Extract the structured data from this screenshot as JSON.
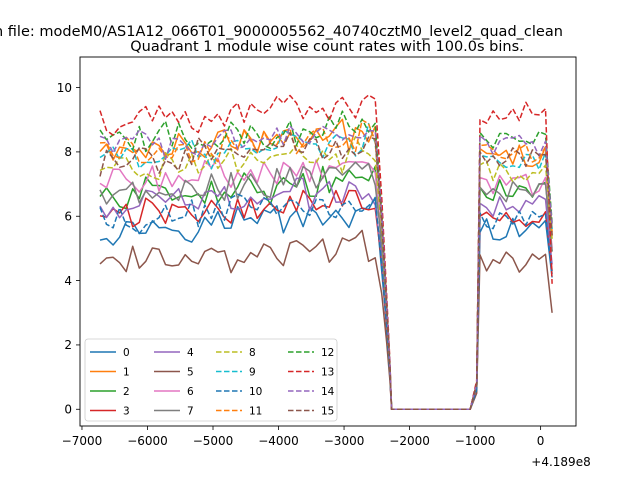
{
  "figure": {
    "suptitle": "n file: modeM0/AS1A12_066T01_9000005562_40740cztM0_level2_quad_clean"
  },
  "chart_data": {
    "type": "line",
    "title": "Quadrant 1 module wise count rates with 100.0s bins.",
    "xlabel": "",
    "ylabel": "",
    "x_offset_label": "+4.189e8",
    "xlim": [
      -7030,
      540
    ],
    "ylim": [
      -0.52,
      10.95
    ],
    "xticks": [
      -7000,
      -6000,
      -5000,
      -4000,
      -3000,
      -2000,
      -1000,
      0
    ],
    "xtick_labels": [
      "−7000",
      "−6000",
      "−5000",
      "−4000",
      "−3000",
      "−2000",
      "−1000",
      "0"
    ],
    "yticks": [
      0,
      2,
      4,
      6,
      8,
      10
    ],
    "ytick_labels": [
      "0",
      "2",
      "4",
      "6",
      "8",
      "10"
    ],
    "grid": false,
    "legend": {
      "placement": "lower-left",
      "columns": 4
    },
    "gap": {
      "start": -2275,
      "end": -1050
    },
    "x": {
      "start": -6725,
      "end": 175,
      "step": 100
    },
    "series": [
      {
        "name": "0",
        "color": "#1f77b4",
        "dash": "solid",
        "level": 5.6,
        "drop": [
          4.3,
          2.6,
          1.1
        ],
        "post": [
          0.6,
          5.5,
          5.6
        ],
        "end": 4.1
      },
      {
        "name": "1",
        "color": "#ff7f0e",
        "dash": "solid",
        "level": 8.0,
        "drop": [
          6.0,
          3.2,
          1.3
        ],
        "post": [
          0.8,
          8.1,
          7.9
        ],
        "end": 5.4
      },
      {
        "name": "2",
        "color": "#2ca02c",
        "dash": "solid",
        "level": 6.6,
        "drop": [
          5.0,
          2.8,
          1.2
        ],
        "post": [
          0.7,
          6.9,
          6.8
        ],
        "end": 4.9
      },
      {
        "name": "3",
        "color": "#d62728",
        "dash": "solid",
        "level": 6.0,
        "drop": [
          4.6,
          2.5,
          1.0
        ],
        "post": [
          0.6,
          6.0,
          5.9
        ],
        "end": 4.3
      },
      {
        "name": "4",
        "color": "#9467bd",
        "dash": "solid",
        "level": 6.3,
        "drop": [
          4.8,
          2.7,
          1.1
        ],
        "post": [
          0.7,
          6.4,
          6.3
        ],
        "end": 4.5
      },
      {
        "name": "5",
        "color": "#8c564b",
        "dash": "solid",
        "level": 4.5,
        "drop": [
          3.6,
          2.1,
          0.9
        ],
        "post": [
          0.5,
          4.8,
          4.6
        ],
        "end": 3.0
      },
      {
        "name": "6",
        "color": "#e377c2",
        "dash": "solid",
        "level": 7.0,
        "drop": [
          5.3,
          3.0,
          1.2
        ],
        "post": [
          0.7,
          7.2,
          7.0
        ],
        "end": 5.0
      },
      {
        "name": "7",
        "color": "#7f7f7f",
        "dash": "solid",
        "level": 6.8,
        "drop": [
          5.2,
          2.9,
          1.2
        ],
        "post": [
          0.7,
          6.9,
          6.8
        ],
        "end": 4.9
      },
      {
        "name": "8",
        "color": "#bcbd22",
        "dash": "dashed",
        "level": 7.4,
        "drop": [
          5.6,
          3.1,
          1.3
        ],
        "post": [
          0.8,
          7.6,
          7.4
        ],
        "end": 5.3
      },
      {
        "name": "9",
        "color": "#17becf",
        "dash": "dashed",
        "level": 7.8,
        "drop": [
          5.9,
          3.2,
          1.3
        ],
        "post": [
          0.8,
          7.9,
          7.8
        ],
        "end": 5.6
      },
      {
        "name": "10",
        "color": "#1f77b4",
        "dash": "dashed",
        "level": 5.9,
        "drop": [
          4.5,
          2.6,
          1.1
        ],
        "post": [
          0.6,
          6.1,
          5.9
        ],
        "end": 4.2
      },
      {
        "name": "11",
        "color": "#ff7f0e",
        "dash": "dashed",
        "level": 7.9,
        "drop": [
          6.0,
          3.3,
          1.3
        ],
        "post": [
          0.8,
          8.2,
          8.0
        ],
        "end": 5.5
      },
      {
        "name": "12",
        "color": "#2ca02c",
        "dash": "dashed",
        "level": 8.3,
        "drop": [
          6.2,
          3.4,
          1.4
        ],
        "post": [
          0.8,
          8.6,
          8.4
        ],
        "end": 5.8
      },
      {
        "name": "13",
        "color": "#d62728",
        "dash": "dashed",
        "level": 8.9,
        "drop": [
          6.6,
          3.6,
          1.5
        ],
        "post": [
          0.9,
          9.0,
          9.2
        ],
        "end": 3.9
      },
      {
        "name": "14",
        "color": "#9467bd",
        "dash": "dashed",
        "level": 8.1,
        "drop": [
          6.1,
          3.3,
          1.4
        ],
        "post": [
          0.8,
          8.5,
          8.2
        ],
        "end": 5.7
      },
      {
        "name": "15",
        "color": "#8c564b",
        "dash": "dashed",
        "level": 7.7,
        "drop": [
          5.8,
          3.2,
          1.3
        ],
        "post": [
          0.8,
          8.0,
          7.8
        ],
        "end": 5.4
      }
    ]
  }
}
